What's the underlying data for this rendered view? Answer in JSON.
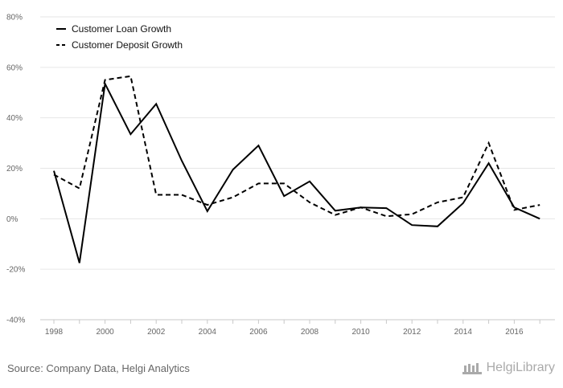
{
  "chart_data": {
    "type": "line",
    "x": [
      1998,
      1999,
      2000,
      2001,
      2002,
      2003,
      2004,
      2005,
      2006,
      2007,
      2008,
      2009,
      2010,
      2011,
      2012,
      2013,
      2014,
      2015,
      2016,
      2017
    ],
    "series": [
      {
        "name": "Customer Loan Growth",
        "style": "solid",
        "values": [
          0.19,
          -0.175,
          0.535,
          0.335,
          0.455,
          0.23,
          0.03,
          0.195,
          0.29,
          0.09,
          0.148,
          0.032,
          0.045,
          0.042,
          -0.025,
          -0.03,
          0.062,
          0.22,
          0.045,
          0.0
        ]
      },
      {
        "name": "Customer Deposit Growth",
        "style": "dashed",
        "values": [
          0.175,
          0.12,
          0.55,
          0.565,
          0.095,
          0.095,
          0.055,
          0.085,
          0.14,
          0.14,
          0.065,
          0.015,
          0.045,
          0.01,
          0.018,
          0.065,
          0.085,
          0.3,
          0.035,
          0.055
        ]
      }
    ],
    "ylim": [
      -0.4,
      0.8
    ],
    "y_ticks": [
      0.8,
      0.6,
      0.4,
      0.2,
      0.0,
      -0.2,
      -0.4
    ],
    "y_tick_labels": [
      "80%",
      "60%",
      "40%",
      "20%",
      "0%",
      "-20%",
      "-40%"
    ],
    "x_tick_labels": [
      "1998",
      "2000",
      "2002",
      "2004",
      "2006",
      "2008",
      "2010",
      "2012",
      "2014",
      "2016"
    ],
    "grid": true,
    "legend_position": "top-left",
    "line_color": "#000000",
    "grid_color": "#e6e6e6"
  },
  "footer": {
    "source": "Source: Company Data, Helgi Analytics",
    "logo_text": "HelgiLibrary"
  }
}
